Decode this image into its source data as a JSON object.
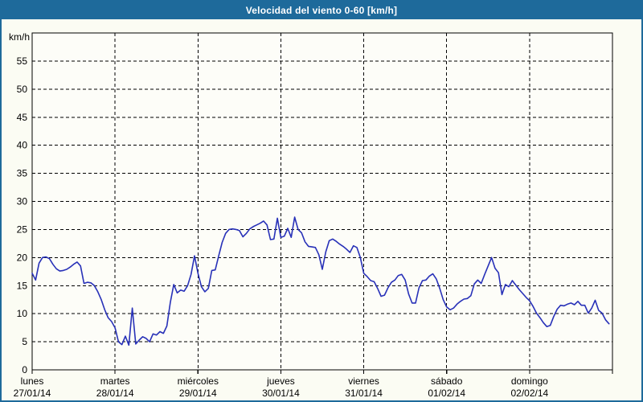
{
  "window": {
    "title": "Velocidad del viento 0-60 [km/h]"
  },
  "colors": {
    "title_bar": "#1e6a9b",
    "frame_border": "#1e6a9b",
    "background": "#fbfcf3",
    "plot_background": "#fdfdf8",
    "line": "#2831b8",
    "grid": "#000000",
    "text": "#000000"
  },
  "chart_data": {
    "type": "line",
    "title": "Velocidad del viento 0-60 [km/h]",
    "ylabel": "km/h",
    "xlabel": "",
    "ylim": [
      0,
      60
    ],
    "yticks": [
      0,
      5,
      10,
      15,
      20,
      25,
      30,
      35,
      40,
      45,
      50,
      55
    ],
    "grid": true,
    "grid_style": "dashed",
    "legend_position": "none",
    "x_unit": "hourly samples, 24 per day",
    "series_name": "Velocidad del viento",
    "days": [
      {
        "name": "lunes",
        "date": "27/01/14",
        "values": [
          17.2,
          16.0,
          19.0,
          20.0,
          20.1,
          19.8,
          18.8,
          18.0,
          17.6,
          17.7,
          17.9,
          18.3,
          18.8,
          19.2,
          18.5,
          15.4,
          15.6,
          15.5,
          15.0,
          13.9,
          12.5,
          10.7,
          9.3,
          8.6
        ]
      },
      {
        "name": "martes",
        "date": "28/01/14",
        "values": [
          7.5,
          5.0,
          4.5,
          6.0,
          4.4,
          11.0,
          4.6,
          5.3,
          5.9,
          5.6,
          5.0,
          6.4,
          6.2,
          6.8,
          6.5,
          7.8,
          12.0,
          15.2,
          13.7,
          14.2,
          14.0,
          15.0,
          17.0,
          20.3
        ]
      },
      {
        "name": "miércoles",
        "date": "29/01/14",
        "values": [
          17.2,
          14.8,
          13.9,
          14.5,
          17.7,
          17.8,
          20.3,
          22.7,
          24.3,
          25.0,
          25.1,
          25.0,
          24.8,
          23.7,
          24.3,
          25.1,
          25.5,
          25.8,
          26.1,
          26.5,
          25.8,
          23.2,
          23.3,
          27.0
        ]
      },
      {
        "name": "jueves",
        "date": "30/01/14",
        "values": [
          23.6,
          23.8,
          25.2,
          23.6,
          27.2,
          25.0,
          24.4,
          22.8,
          22.0,
          21.9,
          21.8,
          20.5,
          17.9,
          21.0,
          23.0,
          23.3,
          22.9,
          22.4,
          22.0,
          21.5,
          20.9,
          22.1,
          21.8,
          20.0
        ]
      },
      {
        "name": "viernes",
        "date": "31/01/14",
        "values": [
          17.2,
          16.6,
          15.9,
          15.7,
          14.5,
          13.1,
          13.3,
          14.6,
          15.6,
          16.0,
          16.8,
          17.0,
          16.0,
          13.5,
          11.9,
          11.9,
          14.6,
          15.9,
          16.0,
          16.7,
          17.1,
          16.2,
          14.5,
          12.5
        ]
      },
      {
        "name": "sábado",
        "date": "01/02/14",
        "values": [
          11.2,
          10.7,
          11.0,
          11.7,
          12.2,
          12.6,
          12.7,
          13.2,
          15.3,
          16.0,
          15.4,
          17.0,
          18.5,
          20.0,
          18.1,
          17.3,
          13.4,
          15.2,
          14.8,
          15.9,
          15.1,
          14.3,
          13.6,
          12.9
        ]
      },
      {
        "name": "domingo",
        "date": "02/02/14",
        "values": [
          12.3,
          11.3,
          10.1,
          9.3,
          8.4,
          7.7,
          7.9,
          9.5,
          10.8,
          11.5,
          11.4,
          11.7,
          11.9,
          11.6,
          12.2,
          11.5,
          11.5,
          10.1,
          11.0,
          12.4,
          10.6,
          10.1,
          8.9,
          8.2
        ]
      }
    ]
  }
}
